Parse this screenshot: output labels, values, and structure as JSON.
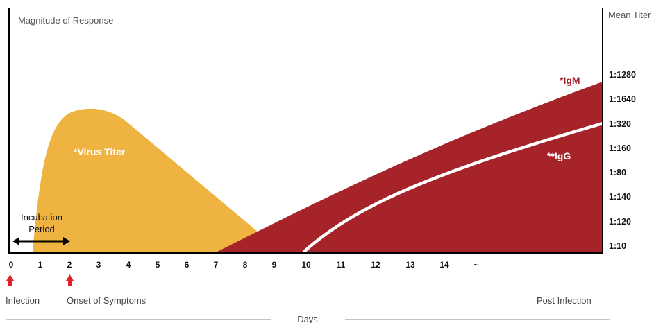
{
  "axes": {
    "y_left_title": "Magnitude of Response",
    "y_right_title": "Mean Titer",
    "x_title": "Days"
  },
  "titer_ticks": [
    "1:1280",
    "1:1640",
    "1:320",
    "1:160",
    "1:80",
    "1:140",
    "1:120",
    "1:10"
  ],
  "day_ticks": [
    "0",
    "1",
    "2",
    "3",
    "4",
    "5",
    "6",
    "7",
    "8",
    "9",
    "10",
    "11",
    "12",
    "13",
    "14",
    "~"
  ],
  "curves": {
    "virus": {
      "label": "*Virus Titer",
      "color": "#EFB342"
    },
    "igm": {
      "label": "*IgM",
      "color": "#A6232A"
    },
    "igg": {
      "label": "**IgG",
      "color": "#FFFFFF"
    }
  },
  "incubation": {
    "line1": "Incubation",
    "line2": "Period"
  },
  "events": {
    "infection": "Infection",
    "onset": "Onset of Symptoms",
    "post": "Post Infection"
  },
  "colors": {
    "arrow_red": "#E0202A",
    "axis": "#000000"
  }
}
